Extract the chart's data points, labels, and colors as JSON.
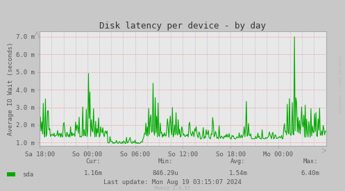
{
  "title": "Disk latency per device - by day",
  "ylabel": "Average IO Wait (seconds)",
  "background_color": "#c8c8c8",
  "plot_bg_color": "#e8e8e8",
  "grid_color_h": "#ff8888",
  "grid_color_v": "#aaaacc",
  "line_color": "#00aa00",
  "ylim": [
    0.0008,
    0.0073
  ],
  "yticks": [
    0.001,
    0.002,
    0.003,
    0.004,
    0.005,
    0.006,
    0.007
  ],
  "ytick_labels": [
    "1.0 m",
    "2.0 m",
    "3.0 m",
    "4.0 m",
    "5.0 m",
    "6.0 m",
    "7.0 m"
  ],
  "xtick_labels": [
    "Sa 18:00",
    "So 00:00",
    "So 06:00",
    "So 12:00",
    "So 18:00",
    "Mo 00:00"
  ],
  "legend_label": "sda",
  "cur": "1.16m",
  "min": "846.29u",
  "avg": "1.54m",
  "max": "6.40m",
  "last_update": "Last update: Mon Aug 19 03:15:07 2024",
  "munin_version": "Munin 2.0.57",
  "watermark": "RRDTOOL / TOBI OETIKER",
  "title_color": "#333333",
  "axis_color": "#aaaaaa",
  "text_color": "#555555",
  "num_points": 400
}
